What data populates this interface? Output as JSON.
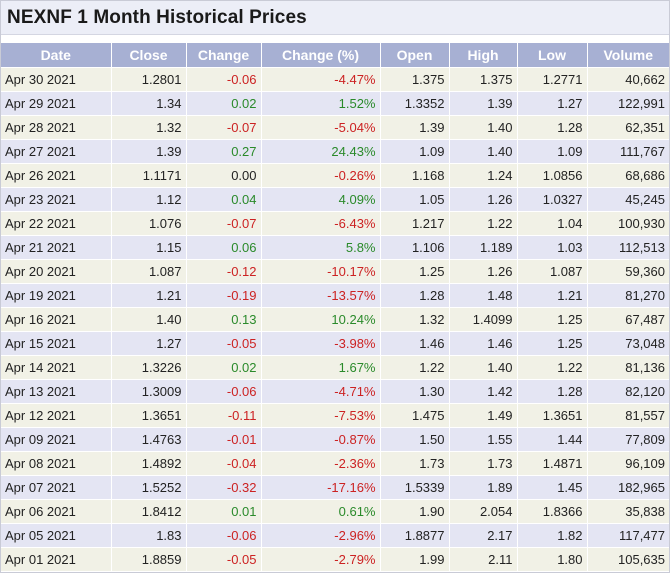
{
  "title": "NEXNF 1 Month Historical Prices",
  "columns": [
    "Date",
    "Close",
    "Change",
    "Change (%)",
    "Open",
    "High",
    "Low",
    "Volume"
  ],
  "colors": {
    "header_bg": "#a7b0d3",
    "row_odd": "#f1f1e6",
    "row_even": "#e4e5f3",
    "negative": "#cc2222",
    "positive": "#2a8a2a"
  },
  "rows": [
    {
      "date": "Apr 30 2021",
      "close": "1.2801",
      "change": "-0.06",
      "change_pct": "-4.47%",
      "open": "1.375",
      "high": "1.375",
      "low": "1.2771",
      "volume": "40,662"
    },
    {
      "date": "Apr 29 2021",
      "close": "1.34",
      "change": "0.02",
      "change_pct": "1.52%",
      "open": "1.3352",
      "high": "1.39",
      "low": "1.27",
      "volume": "122,991"
    },
    {
      "date": "Apr 28 2021",
      "close": "1.32",
      "change": "-0.07",
      "change_pct": "-5.04%",
      "open": "1.39",
      "high": "1.40",
      "low": "1.28",
      "volume": "62,351"
    },
    {
      "date": "Apr 27 2021",
      "close": "1.39",
      "change": "0.27",
      "change_pct": "24.43%",
      "open": "1.09",
      "high": "1.40",
      "low": "1.09",
      "volume": "111,767"
    },
    {
      "date": "Apr 26 2021",
      "close": "1.1171",
      "change": "0.00",
      "change_pct": "-0.26%",
      "open": "1.168",
      "high": "1.24",
      "low": "1.0856",
      "volume": "68,686"
    },
    {
      "date": "Apr 23 2021",
      "close": "1.12",
      "change": "0.04",
      "change_pct": "4.09%",
      "open": "1.05",
      "high": "1.26",
      "low": "1.0327",
      "volume": "45,245"
    },
    {
      "date": "Apr 22 2021",
      "close": "1.076",
      "change": "-0.07",
      "change_pct": "-6.43%",
      "open": "1.217",
      "high": "1.22",
      "low": "1.04",
      "volume": "100,930"
    },
    {
      "date": "Apr 21 2021",
      "close": "1.15",
      "change": "0.06",
      "change_pct": "5.8%",
      "open": "1.106",
      "high": "1.189",
      "low": "1.03",
      "volume": "112,513"
    },
    {
      "date": "Apr 20 2021",
      "close": "1.087",
      "change": "-0.12",
      "change_pct": "-10.17%",
      "open": "1.25",
      "high": "1.26",
      "low": "1.087",
      "volume": "59,360"
    },
    {
      "date": "Apr 19 2021",
      "close": "1.21",
      "change": "-0.19",
      "change_pct": "-13.57%",
      "open": "1.28",
      "high": "1.48",
      "low": "1.21",
      "volume": "81,270"
    },
    {
      "date": "Apr 16 2021",
      "close": "1.40",
      "change": "0.13",
      "change_pct": "10.24%",
      "open": "1.32",
      "high": "1.4099",
      "low": "1.25",
      "volume": "67,487"
    },
    {
      "date": "Apr 15 2021",
      "close": "1.27",
      "change": "-0.05",
      "change_pct": "-3.98%",
      "open": "1.46",
      "high": "1.46",
      "low": "1.25",
      "volume": "73,048"
    },
    {
      "date": "Apr 14 2021",
      "close": "1.3226",
      "change": "0.02",
      "change_pct": "1.67%",
      "open": "1.22",
      "high": "1.40",
      "low": "1.22",
      "volume": "81,136"
    },
    {
      "date": "Apr 13 2021",
      "close": "1.3009",
      "change": "-0.06",
      "change_pct": "-4.71%",
      "open": "1.30",
      "high": "1.42",
      "low": "1.28",
      "volume": "82,120"
    },
    {
      "date": "Apr 12 2021",
      "close": "1.3651",
      "change": "-0.11",
      "change_pct": "-7.53%",
      "open": "1.475",
      "high": "1.49",
      "low": "1.3651",
      "volume": "81,557"
    },
    {
      "date": "Apr 09 2021",
      "close": "1.4763",
      "change": "-0.01",
      "change_pct": "-0.87%",
      "open": "1.50",
      "high": "1.55",
      "low": "1.44",
      "volume": "77,809"
    },
    {
      "date": "Apr 08 2021",
      "close": "1.4892",
      "change": "-0.04",
      "change_pct": "-2.36%",
      "open": "1.73",
      "high": "1.73",
      "low": "1.4871",
      "volume": "96,109"
    },
    {
      "date": "Apr 07 2021",
      "close": "1.5252",
      "change": "-0.32",
      "change_pct": "-17.16%",
      "open": "1.5339",
      "high": "1.89",
      "low": "1.45",
      "volume": "182,965"
    },
    {
      "date": "Apr 06 2021",
      "close": "1.8412",
      "change": "0.01",
      "change_pct": "0.61%",
      "open": "1.90",
      "high": "2.054",
      "low": "1.8366",
      "volume": "35,838"
    },
    {
      "date": "Apr 05 2021",
      "close": "1.83",
      "change": "-0.06",
      "change_pct": "-2.96%",
      "open": "1.8877",
      "high": "2.17",
      "low": "1.82",
      "volume": "117,477"
    },
    {
      "date": "Apr 01 2021",
      "close": "1.8859",
      "change": "-0.05",
      "change_pct": "-2.79%",
      "open": "1.99",
      "high": "2.11",
      "low": "1.80",
      "volume": "105,635"
    }
  ]
}
